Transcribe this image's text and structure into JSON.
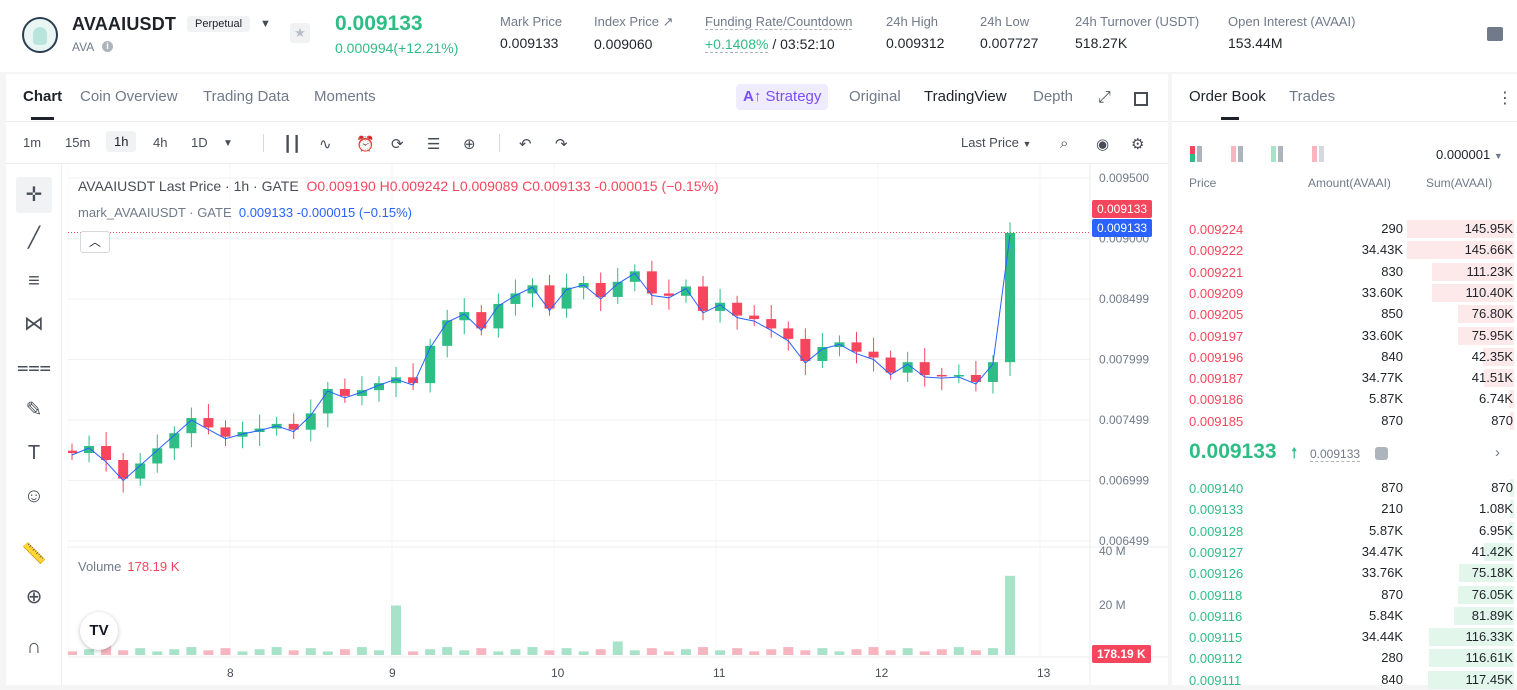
{
  "header": {
    "symbol": "AVAAIUSDT",
    "contract_type": "Perpetual",
    "base": "AVA",
    "last_price": "0.009133",
    "change": "0.000994(+12.21%)",
    "stats": [
      {
        "label": "Mark Price",
        "value": "0.009133"
      },
      {
        "label": "Index Price ↗",
        "value": "0.009060"
      },
      {
        "label": "Funding Rate/Countdown",
        "rate": "+0.1408%",
        "countdown": "/ 03:52:10"
      },
      {
        "label": "24h High",
        "value": "0.009312"
      },
      {
        "label": "24h Low",
        "value": "0.007727"
      },
      {
        "label": "24h Turnover (USDT)",
        "value": "518.27K"
      },
      {
        "label": "Open Interest (AVAAI)",
        "value": "153.44M"
      }
    ]
  },
  "chart_tabs": [
    "Chart",
    "Coin Overview",
    "Trading Data",
    "Moments"
  ],
  "view_tabs": {
    "strategy": "Strategy",
    "original": "Original",
    "tradingview": "TradingView",
    "depth": "Depth"
  },
  "timeframes": [
    "1m",
    "15m",
    "1h",
    "4h",
    "1D"
  ],
  "price_type": "Last Price",
  "legend": {
    "main": "AVAAIUSDT Last Price · 1h · GATE",
    "ohlc": "O0.009190 H0.009242 L0.009089 C0.009133 -0.000015 (−0.15%)",
    "mark_name": "mark_AVAAIUSDT · GATE",
    "mark_values": "0.009133 -0.000015 (−0.15%)",
    "volume_name": "Volume",
    "volume_value": "178.19 K"
  },
  "price_tags": {
    "last": "0.009133",
    "mark": "0.009133",
    "volume": "178.19 K"
  },
  "colors": {
    "up": "#2ebd85",
    "down": "#f6465d",
    "mark": "#2962ff",
    "strategy": "#7b4dff"
  },
  "chart_data": {
    "type": "candlestick",
    "interval": "1h",
    "y_axis_ticks": [
      "0.009500",
      "0.009000",
      "0.008499",
      "0.007999",
      "0.007499",
      "0.006999",
      "0.006499"
    ],
    "ylim": [
      0.00645,
      0.00955
    ],
    "x_axis_ticks": [
      "8",
      "9",
      "10",
      "11",
      "12",
      "13"
    ],
    "volume_axis_ticks": [
      "40 M",
      "20 M"
    ],
    "close_series": [
      0.00724,
      0.0073,
      0.00718,
      0.00702,
      0.00715,
      0.00728,
      0.00741,
      0.00754,
      0.00746,
      0.00738,
      0.00742,
      0.00745,
      0.00749,
      0.00744,
      0.00758,
      0.00779,
      0.00773,
      0.00778,
      0.00784,
      0.00789,
      0.00784,
      0.00816,
      0.00838,
      0.00845,
      0.00831,
      0.00852,
      0.00861,
      0.00868,
      0.00848,
      0.00866,
      0.0087,
      0.00858,
      0.00871,
      0.0088,
      0.00861,
      0.00859,
      0.00867,
      0.00846,
      0.00853,
      0.00842,
      0.00839,
      0.00831,
      0.00822,
      0.00803,
      0.00815,
      0.00819,
      0.00811,
      0.00806,
      0.00793,
      0.00802,
      0.00791,
      0.0079,
      0.00791,
      0.00785,
      0.00802,
      0.00913
    ]
  },
  "orderbook": {
    "tabs": [
      "Order Book",
      "Trades"
    ],
    "precision": "0.000001",
    "headers": [
      "Price",
      "Amount(AVAAI)",
      "Sum(AVAAI)"
    ],
    "asks": [
      {
        "price": "0.009224",
        "amount": "290",
        "sum": "145.95K",
        "depth": 0.99
      },
      {
        "price": "0.009222",
        "amount": "34.43K",
        "sum": "145.66K",
        "depth": 0.99
      },
      {
        "price": "0.009221",
        "amount": "830",
        "sum": "111.23K",
        "depth": 0.76
      },
      {
        "price": "0.009209",
        "amount": "33.60K",
        "sum": "110.40K",
        "depth": 0.76
      },
      {
        "price": "0.009205",
        "amount": "850",
        "sum": "76.80K",
        "depth": 0.52
      },
      {
        "price": "0.009197",
        "amount": "33.60K",
        "sum": "75.95K",
        "depth": 0.52
      },
      {
        "price": "0.009196",
        "amount": "840",
        "sum": "42.35K",
        "depth": 0.29
      },
      {
        "price": "0.009187",
        "amount": "34.77K",
        "sum": "41.51K",
        "depth": 0.28
      },
      {
        "price": "0.009186",
        "amount": "5.87K",
        "sum": "6.74K",
        "depth": 0.05
      },
      {
        "price": "0.009185",
        "amount": "870",
        "sum": "870",
        "depth": 0.01
      }
    ],
    "mid_price": "0.009133",
    "mid_mark": "0.009133",
    "bids": [
      {
        "price": "0.009140",
        "amount": "870",
        "sum": "870",
        "depth": 0.01
      },
      {
        "price": "0.009133",
        "amount": "210",
        "sum": "1.08K",
        "depth": 0.01
      },
      {
        "price": "0.009128",
        "amount": "5.87K",
        "sum": "6.95K",
        "depth": 0.05
      },
      {
        "price": "0.009127",
        "amount": "34.47K",
        "sum": "41.42K",
        "depth": 0.28
      },
      {
        "price": "0.009126",
        "amount": "33.76K",
        "sum": "75.18K",
        "depth": 0.51
      },
      {
        "price": "0.009118",
        "amount": "870",
        "sum": "76.05K",
        "depth": 0.52
      },
      {
        "price": "0.009116",
        "amount": "5.84K",
        "sum": "81.89K",
        "depth": 0.56
      },
      {
        "price": "0.009115",
        "amount": "34.44K",
        "sum": "116.33K",
        "depth": 0.79
      },
      {
        "price": "0.009112",
        "amount": "280",
        "sum": "116.61K",
        "depth": 0.79
      },
      {
        "price": "0.009111",
        "amount": "840",
        "sum": "117.45K",
        "depth": 0.8
      }
    ]
  }
}
